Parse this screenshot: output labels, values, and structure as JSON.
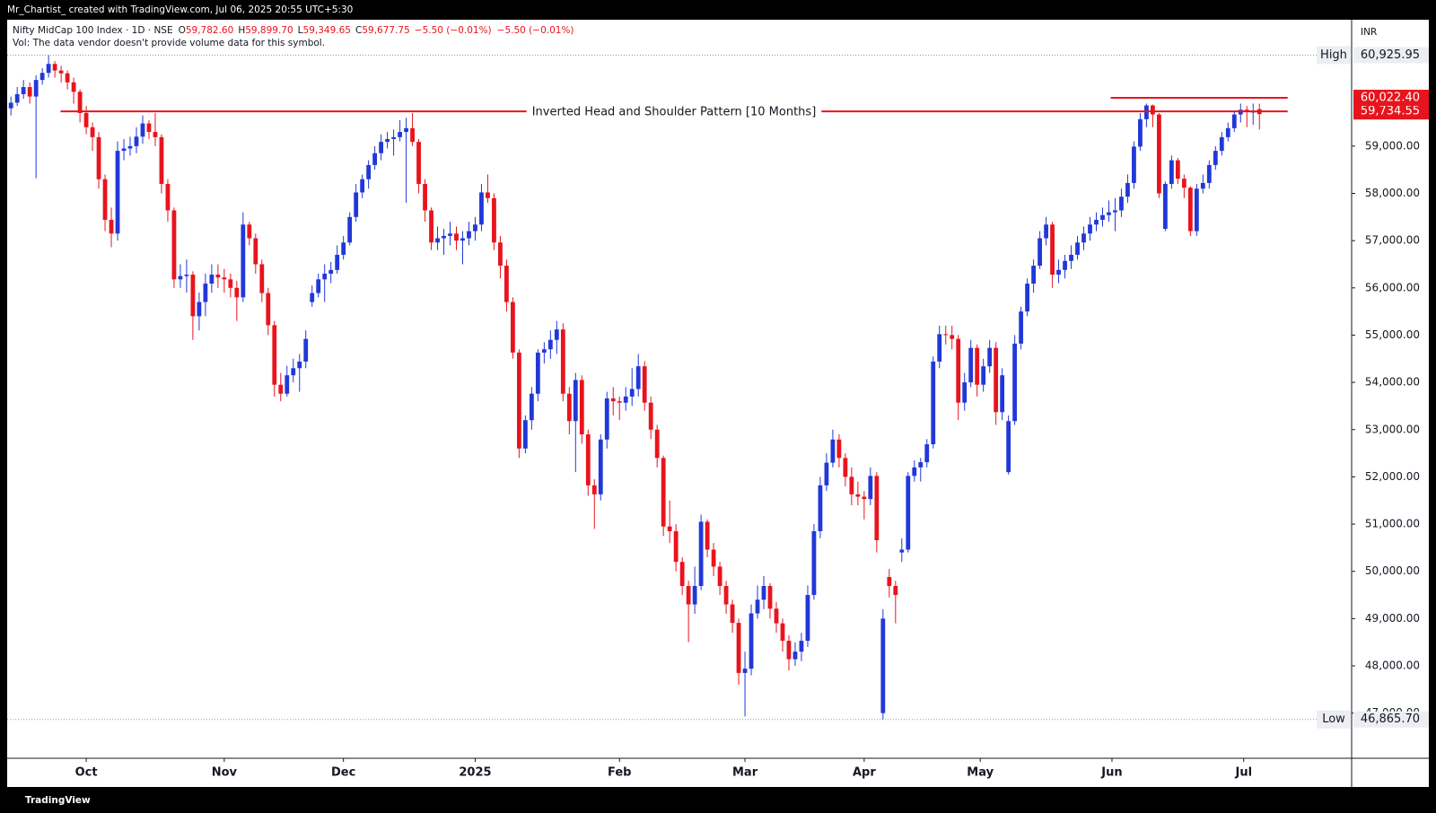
{
  "header": {
    "credit": "Mr_Chartist_ created with TradingView.com, Jul 06, 2025 20:55 UTC+5:30",
    "symbol": "Nifty MidCap 100 Index · 1D · NSE",
    "ohlc": [
      {
        "key": "O",
        "value": "59,782.60"
      },
      {
        "key": "H",
        "value": "59,899.70"
      },
      {
        "key": "L",
        "value": "59,349.65"
      },
      {
        "key": "C",
        "value": "59,677.75"
      }
    ],
    "change": [
      "−5.50 (−0.01%)",
      "−5.50 (−0.01%)"
    ],
    "volume_note": "Vol: The data vendor doesn't provide volume data for this symbol."
  },
  "footer": {
    "brand": "TradingView"
  },
  "chart_data": {
    "type": "candlestick",
    "currency": "INR",
    "up_color": "#2138d8",
    "down_color": "#e8141d",
    "xlim": [
      -0.6,
      213.7
    ],
    "ylim": [
      46044,
      61675
    ],
    "xticks": [
      {
        "value": 12,
        "label": "Oct"
      },
      {
        "value": 34,
        "label": "Nov"
      },
      {
        "value": 53,
        "label": "Dec"
      },
      {
        "value": 74,
        "label": "2025"
      },
      {
        "value": 97,
        "label": "Feb"
      },
      {
        "value": 117,
        "label": "Mar"
      },
      {
        "value": 136,
        "label": "Apr"
      },
      {
        "value": 154.5,
        "label": "May"
      },
      {
        "value": 175.5,
        "label": "Jun"
      },
      {
        "value": 196.5,
        "label": "Jul"
      }
    ],
    "yticks": [
      {
        "value": 47000,
        "label": "47,000.00"
      },
      {
        "value": 48000,
        "label": "48,000.00"
      },
      {
        "value": 49000,
        "label": "49,000.00"
      },
      {
        "value": 50000,
        "label": "50,000.00"
      },
      {
        "value": 51000,
        "label": "51,000.00"
      },
      {
        "value": 52000,
        "label": "52,000.00"
      },
      {
        "value": 53000,
        "label": "53,000.00"
      },
      {
        "value": 54000,
        "label": "54,000.00"
      },
      {
        "value": 55000,
        "label": "55,000.00"
      },
      {
        "value": 56000,
        "label": "56,000.00"
      },
      {
        "value": 57000,
        "label": "57,000.00"
      },
      {
        "value": 58000,
        "label": "58,000.00"
      },
      {
        "value": 59000,
        "label": "59,000.00"
      }
    ],
    "high": {
      "label": "High",
      "value": 60925.95,
      "value_label": "60,925.95"
    },
    "low": {
      "label": "Low",
      "value": 46865.7,
      "value_label": "46,865.70"
    },
    "levels": [
      {
        "value": 59734.55,
        "value_label": "59,734.55",
        "text": "Inverted Head and Shoulder Pattern [10 Months]"
      },
      {
        "value": 60022.4,
        "value_label": "60,022.40"
      }
    ],
    "ohlc": [
      [
        59800,
        60050,
        59650,
        59920
      ],
      [
        59920,
        60250,
        59850,
        60100
      ],
      [
        60100,
        60400,
        60000,
        60250
      ],
      [
        60250,
        60350,
        59900,
        60050
      ],
      [
        60050,
        60500,
        58320,
        60400
      ],
      [
        60400,
        60650,
        60300,
        60550
      ],
      [
        60550,
        60925.95,
        60450,
        60740
      ],
      [
        60740,
        60800,
        60450,
        60600
      ],
      [
        60600,
        60700,
        60350,
        60540
      ],
      [
        60540,
        60600,
        60200,
        60350
      ],
      [
        60350,
        60450,
        59900,
        60150
      ],
      [
        60150,
        60200,
        59500,
        59700
      ],
      [
        59700,
        59850,
        59250,
        59400
      ],
      [
        59400,
        59500,
        58900,
        59190
      ],
      [
        59190,
        59300,
        58100,
        58300
      ],
      [
        58300,
        58400,
        57200,
        57440
      ],
      [
        57440,
        57700,
        56860,
        57150
      ],
      [
        57150,
        59100,
        57000,
        58900
      ],
      [
        58900,
        59150,
        58700,
        58950
      ],
      [
        58950,
        59200,
        58800,
        59000
      ],
      [
        59000,
        59400,
        58850,
        59200
      ],
      [
        59200,
        59650,
        59050,
        59480
      ],
      [
        59480,
        59550,
        59150,
        59300
      ],
      [
        59300,
        59700,
        59000,
        59190
      ],
      [
        59190,
        59250,
        58000,
        58200
      ],
      [
        58200,
        58300,
        57400,
        57640
      ],
      [
        57640,
        57700,
        56000,
        56180
      ],
      [
        56180,
        56500,
        56000,
        56250
      ],
      [
        56250,
        56600,
        55900,
        56280
      ],
      [
        56280,
        56350,
        54900,
        55400
      ],
      [
        55400,
        55900,
        55100,
        55700
      ],
      [
        55700,
        56300,
        55400,
        56090
      ],
      [
        56090,
        56500,
        55900,
        56280
      ],
      [
        56280,
        56500,
        56000,
        56220
      ],
      [
        56220,
        56400,
        55900,
        56180
      ],
      [
        56180,
        56300,
        55800,
        56000
      ],
      [
        56000,
        56150,
        55300,
        55800
      ],
      [
        55800,
        57600,
        55700,
        57340
      ],
      [
        57340,
        57400,
        56900,
        57050
      ],
      [
        57050,
        57150,
        56300,
        56500
      ],
      [
        56500,
        56600,
        55700,
        55890
      ],
      [
        55890,
        56000,
        55000,
        55210
      ],
      [
        55210,
        55300,
        53700,
        53950
      ],
      [
        53950,
        54200,
        53600,
        53760
      ],
      [
        53760,
        54350,
        53700,
        54150
      ],
      [
        54150,
        54500,
        54000,
        54300
      ],
      [
        54300,
        54600,
        53800,
        54440
      ],
      [
        54440,
        55100,
        54300,
        54920
      ],
      [
        55700,
        56050,
        55600,
        55890
      ],
      [
        55890,
        56300,
        55800,
        56180
      ],
      [
        56180,
        56500,
        55700,
        56300
      ],
      [
        56300,
        56550,
        56100,
        56380
      ],
      [
        56380,
        56900,
        56300,
        56700
      ],
      [
        56700,
        57100,
        56600,
        56960
      ],
      [
        56960,
        57600,
        56900,
        57500
      ],
      [
        57500,
        58200,
        57400,
        58020
      ],
      [
        58020,
        58400,
        57900,
        58300
      ],
      [
        58300,
        58700,
        58100,
        58600
      ],
      [
        58600,
        59000,
        58500,
        58850
      ],
      [
        58850,
        59250,
        58700,
        59090
      ],
      [
        59090,
        59300,
        58950,
        59150
      ],
      [
        59150,
        59350,
        58800,
        59190
      ],
      [
        59190,
        59550,
        59100,
        59300
      ],
      [
        59300,
        59600,
        57800,
        59380
      ],
      [
        59380,
        59700,
        59000,
        59090
      ],
      [
        59090,
        59150,
        58000,
        58200
      ],
      [
        58200,
        58300,
        57400,
        57640
      ],
      [
        57640,
        57700,
        56800,
        56960
      ],
      [
        56960,
        57300,
        56800,
        57050
      ],
      [
        57050,
        57250,
        56700,
        57100
      ],
      [
        57100,
        57400,
        56900,
        57150
      ],
      [
        57150,
        57300,
        56800,
        57000
      ],
      [
        57000,
        57200,
        56500,
        57050
      ],
      [
        57050,
        57400,
        56900,
        57200
      ],
      [
        57200,
        57500,
        57000,
        57340
      ],
      [
        57340,
        58200,
        57200,
        58020
      ],
      [
        58020,
        58400,
        57800,
        57900
      ],
      [
        57900,
        58000,
        56800,
        56960
      ],
      [
        56960,
        57100,
        56200,
        56470
      ],
      [
        56470,
        56600,
        55500,
        55700
      ],
      [
        55700,
        55800,
        54500,
        54630
      ],
      [
        54630,
        54700,
        52400,
        52600
      ],
      [
        52600,
        53300,
        52500,
        53200
      ],
      [
        53200,
        53900,
        53000,
        53760
      ],
      [
        53760,
        54700,
        53600,
        54630
      ],
      [
        54630,
        54850,
        54400,
        54700
      ],
      [
        54700,
        55100,
        54500,
        54900
      ],
      [
        54900,
        55300,
        54600,
        55120
      ],
      [
        55120,
        55250,
        53600,
        53760
      ],
      [
        53760,
        53900,
        52900,
        53180
      ],
      [
        53180,
        54200,
        52100,
        54050
      ],
      [
        54050,
        54150,
        52700,
        52900
      ],
      [
        52900,
        53000,
        51600,
        51820
      ],
      [
        51820,
        51950,
        50900,
        51630
      ],
      [
        51630,
        52900,
        51500,
        52790
      ],
      [
        52790,
        53800,
        52600,
        53660
      ],
      [
        53660,
        53900,
        53300,
        53600
      ],
      [
        53600,
        53700,
        53200,
        53570
      ],
      [
        53570,
        53900,
        53400,
        53700
      ],
      [
        53700,
        54300,
        53500,
        53860
      ],
      [
        53860,
        54600,
        53700,
        54340
      ],
      [
        54340,
        54450,
        53400,
        53570
      ],
      [
        53570,
        53700,
        52800,
        53000
      ],
      [
        53000,
        53100,
        52200,
        52400
      ],
      [
        52400,
        52450,
        50750,
        50950
      ],
      [
        50950,
        51500,
        50600,
        50850
      ],
      [
        50850,
        51000,
        50000,
        50200
      ],
      [
        50200,
        50300,
        49500,
        49690
      ],
      [
        49690,
        49800,
        48500,
        49300
      ],
      [
        49300,
        50100,
        49100,
        49690
      ],
      [
        49690,
        51200,
        49600,
        51050
      ],
      [
        51050,
        51100,
        50300,
        50460
      ],
      [
        50460,
        50600,
        49900,
        50100
      ],
      [
        50100,
        50200,
        49500,
        49690
      ],
      [
        49690,
        49800,
        49100,
        49300
      ],
      [
        49300,
        49400,
        48700,
        48910
      ],
      [
        48910,
        49000,
        47600,
        47850
      ],
      [
        47850,
        48300,
        46930,
        47940
      ],
      [
        47940,
        49300,
        47800,
        49110
      ],
      [
        49110,
        49700,
        49000,
        49400
      ],
      [
        49400,
        49900,
        49200,
        49690
      ],
      [
        49690,
        49750,
        49000,
        49210
      ],
      [
        49210,
        49350,
        48700,
        48900
      ],
      [
        48900,
        49000,
        48300,
        48530
      ],
      [
        48530,
        48650,
        47900,
        48140
      ],
      [
        48140,
        48500,
        48000,
        48300
      ],
      [
        48300,
        48700,
        48100,
        48530
      ],
      [
        48530,
        49700,
        48400,
        49500
      ],
      [
        49500,
        51000,
        49400,
        50850
      ],
      [
        50850,
        52000,
        50700,
        51820
      ],
      [
        51820,
        52500,
        51700,
        52300
      ],
      [
        52300,
        53000,
        52200,
        52790
      ],
      [
        52790,
        52900,
        52200,
        52400
      ],
      [
        52400,
        52500,
        51800,
        52000
      ],
      [
        52000,
        52200,
        51400,
        51630
      ],
      [
        51630,
        51900,
        51400,
        51580
      ],
      [
        51580,
        51700,
        51100,
        51530
      ],
      [
        51530,
        52200,
        51400,
        52020
      ],
      [
        52020,
        52100,
        50400,
        50660
      ],
      [
        47000,
        49200,
        46865.7,
        49000
      ],
      [
        49880,
        50050,
        49450,
        49690
      ],
      [
        49690,
        49800,
        48900,
        49500
      ],
      [
        50400,
        50700,
        50200,
        50460
      ],
      [
        50460,
        52100,
        50400,
        52020
      ],
      [
        52020,
        52350,
        51900,
        52200
      ],
      [
        52200,
        52400,
        51900,
        52310
      ],
      [
        52310,
        52800,
        52200,
        52690
      ],
      [
        52690,
        54550,
        52600,
        54440
      ],
      [
        54440,
        55200,
        54300,
        55020
      ],
      [
        55020,
        55200,
        54800,
        55000
      ],
      [
        55000,
        55200,
        54700,
        54920
      ],
      [
        54920,
        55000,
        53200,
        53570
      ],
      [
        53570,
        54200,
        53400,
        54000
      ],
      [
        54000,
        54900,
        53900,
        54730
      ],
      [
        54730,
        54800,
        53700,
        53950
      ],
      [
        53950,
        54500,
        53800,
        54340
      ],
      [
        54340,
        54900,
        54200,
        54730
      ],
      [
        54730,
        54850,
        53100,
        53370
      ],
      [
        53370,
        54300,
        53200,
        54150
      ],
      [
        52100,
        53300,
        52050,
        53180
      ],
      [
        53180,
        55000,
        53100,
        54820
      ],
      [
        54820,
        55600,
        54700,
        55500
      ],
      [
        55500,
        56200,
        55400,
        56090
      ],
      [
        56090,
        56600,
        55900,
        56470
      ],
      [
        56470,
        57200,
        56400,
        57050
      ],
      [
        57050,
        57500,
        56900,
        57340
      ],
      [
        57340,
        57400,
        56000,
        56280
      ],
      [
        56280,
        56600,
        56100,
        56380
      ],
      [
        56380,
        56700,
        56200,
        56570
      ],
      [
        56570,
        56900,
        56400,
        56700
      ],
      [
        56700,
        57100,
        56600,
        56960
      ],
      [
        56960,
        57300,
        56800,
        57150
      ],
      [
        57150,
        57500,
        57000,
        57340
      ],
      [
        57340,
        57600,
        57200,
        57440
      ],
      [
        57440,
        57700,
        57300,
        57540
      ],
      [
        57540,
        57850,
        57400,
        57600
      ],
      [
        57600,
        57900,
        57200,
        57640
      ],
      [
        57640,
        58100,
        57500,
        57930
      ],
      [
        57930,
        58400,
        57800,
        58220
      ],
      [
        58220,
        59100,
        58100,
        58990
      ],
      [
        58990,
        59700,
        58900,
        59570
      ],
      [
        59570,
        59900,
        59400,
        59860
      ],
      [
        59860,
        59880,
        59400,
        59670
      ],
      [
        59670,
        59700,
        57900,
        58000
      ],
      [
        57250,
        58250,
        57200,
        58200
      ],
      [
        58200,
        58800,
        58100,
        58700
      ],
      [
        58700,
        58750,
        58200,
        58310
      ],
      [
        58310,
        58400,
        57900,
        58120
      ],
      [
        58120,
        58150,
        57100,
        57200
      ],
      [
        57200,
        58200,
        57100,
        58100
      ],
      [
        58100,
        58400,
        58000,
        58220
      ],
      [
        58220,
        58700,
        58100,
        58600
      ],
      [
        58600,
        59000,
        58500,
        58900
      ],
      [
        58900,
        59300,
        58800,
        59190
      ],
      [
        59190,
        59500,
        59100,
        59380
      ],
      [
        59380,
        59750,
        59300,
        59670
      ],
      [
        59670,
        59900,
        59500,
        59770
      ],
      [
        59770,
        59850,
        59400,
        59730
      ],
      [
        59730,
        59900,
        59450,
        59730
      ],
      [
        59782.6,
        59899.7,
        59349.65,
        59677.75
      ]
    ]
  }
}
